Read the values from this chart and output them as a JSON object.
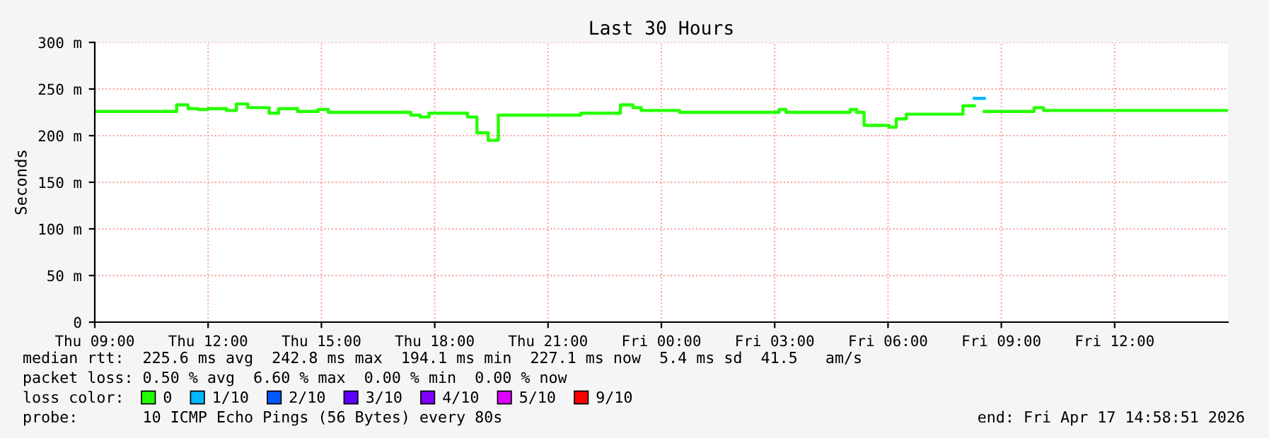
{
  "chart_data": {
    "type": "step",
    "title": "Last 30 Hours",
    "ylabel": "Seconds",
    "xlim": [
      "2026-04-16T09:00",
      "2026-04-17T15:00"
    ],
    "xticks": [
      {
        "value": "2026-04-16T09:00",
        "label": "Thu 09:00"
      },
      {
        "value": "2026-04-16T12:00",
        "label": "Thu 12:00"
      },
      {
        "value": "2026-04-16T15:00",
        "label": "Thu 15:00"
      },
      {
        "value": "2026-04-16T18:00",
        "label": "Thu 18:00"
      },
      {
        "value": "2026-04-16T21:00",
        "label": "Thu 21:00"
      },
      {
        "value": "2026-04-17T00:00",
        "label": "Fri 00:00"
      },
      {
        "value": "2026-04-17T03:00",
        "label": "Fri 03:00"
      },
      {
        "value": "2026-04-17T06:00",
        "label": "Fri 06:00"
      },
      {
        "value": "2026-04-17T09:00",
        "label": "Fri 09:00"
      },
      {
        "value": "2026-04-17T12:00",
        "label": "Fri 12:00"
      }
    ],
    "ylim": [
      0,
      300
    ],
    "yticks": [
      {
        "value": 0,
        "label": "0"
      },
      {
        "value": 50,
        "label": "50 m"
      },
      {
        "value": 100,
        "label": "100 m"
      },
      {
        "value": 150,
        "label": "150 m"
      },
      {
        "value": 200,
        "label": "200 m"
      },
      {
        "value": 250,
        "label": "250 m"
      },
      {
        "value": 300,
        "label": "300 m"
      }
    ],
    "grid": true,
    "legend": "bottom",
    "legend_title": "loss color:",
    "series": [
      {
        "name": "0",
        "color": "#26ff00",
        "x": [
          "2026-04-16T09:00",
          "2026-04-16T11:10",
          "2026-04-16T11:28",
          "2026-04-16T11:44",
          "2026-04-16T12:00",
          "2026-04-16T12:29",
          "2026-04-16T12:45",
          "2026-04-16T13:03",
          "2026-04-16T13:37",
          "2026-04-16T13:52",
          "2026-04-16T14:22",
          "2026-04-16T14:55",
          "2026-04-16T15:11",
          "2026-04-16T17:22",
          "2026-04-16T17:37",
          "2026-04-16T17:51",
          "2026-04-16T18:52",
          "2026-04-16T19:07",
          "2026-04-16T19:25",
          "2026-04-16T19:41",
          "2026-04-16T21:52",
          "2026-04-16T22:55",
          "2026-04-16T23:15",
          "2026-04-16T23:28",
          "2026-04-17T00:29",
          "2026-04-17T03:07",
          "2026-04-17T03:18",
          "2026-04-17T05:00",
          "2026-04-17T05:10",
          "2026-04-17T05:22",
          "2026-04-17T06:02",
          "2026-04-17T06:13",
          "2026-04-17T06:29",
          "2026-04-17T07:59",
          "2026-04-17T08:17",
          "2026-04-17T08:33",
          "2026-04-17T09:52",
          "2026-04-17T10:07",
          "2026-04-17T11:44",
          "2026-04-17T15:00"
        ],
        "values": [
          226,
          233,
          229,
          228,
          229,
          227,
          234,
          230,
          224,
          229,
          226,
          228,
          225,
          222,
          220,
          224,
          220,
          203,
          195,
          222,
          224,
          233,
          230,
          227,
          225,
          228,
          225,
          228,
          225,
          211,
          209,
          218,
          223,
          232,
          null,
          226,
          230,
          227,
          227,
          227
        ]
      },
      {
        "name": "1/10",
        "color": "#00b8ff",
        "x": [
          "2026-04-17T08:17",
          "2026-04-17T08:33"
        ],
        "values": [
          240,
          240
        ]
      },
      {
        "name": "2/10",
        "color": "#0059ff"
      },
      {
        "name": "3/10",
        "color": "#5e00ff"
      },
      {
        "name": "4/10",
        "color": "#7e00ff"
      },
      {
        "name": "5/10",
        "color": "#dd00ff"
      },
      {
        "name": "9/10",
        "color": "#ff0000"
      }
    ],
    "annotations": [
      "median rtt:  225.6 ms avg  242.8 ms max  194.1 ms min  227.1 ms now  5.4 ms sd  41.5   am/s",
      "packet loss: 0.50 % avg  6.60 % max  0.00 % min  0.00 % now",
      "probe:       10 ICMP Echo Pings (56 Bytes) every 80s",
      "end: Fri Apr 17 14:58:51 2026"
    ]
  }
}
